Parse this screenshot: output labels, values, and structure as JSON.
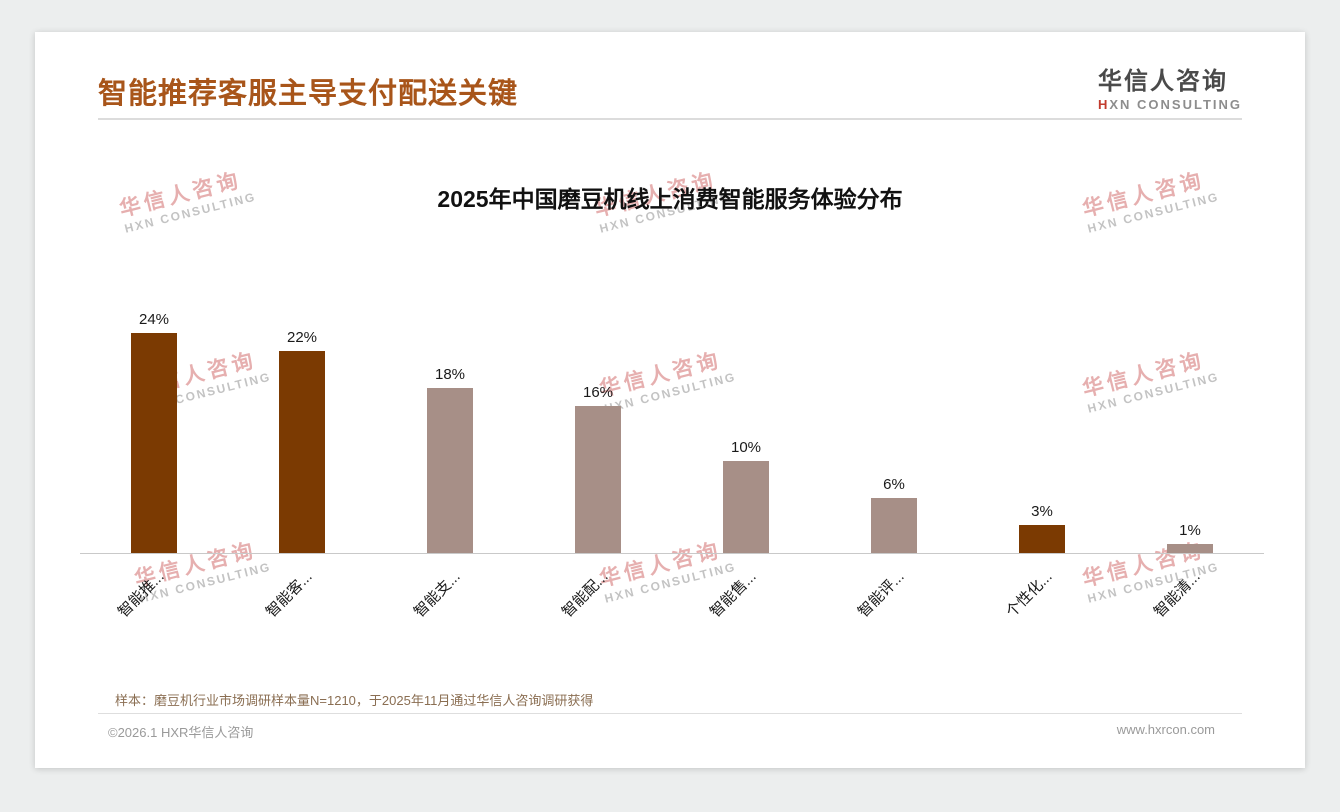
{
  "header": {
    "title": "智能推荐客服主导支付配送关键",
    "logo": {
      "cn": "华信人咨询",
      "en_mark": "H",
      "en_rest": "XN CONSULTING"
    }
  },
  "watermark": {
    "cn": "华信人咨询",
    "en": "HXN CONSULTING"
  },
  "chart_data": {
    "type": "bar",
    "title": "2025年中国磨豆机线上消费智能服务体验分布",
    "categories": [
      "智能推...",
      "智能客...",
      "智能支...",
      "智能配...",
      "智能售...",
      "智能评...",
      "个性化...",
      "智能清..."
    ],
    "values": [
      24,
      22,
      18,
      16,
      10,
      6,
      3,
      1
    ],
    "value_labels": [
      "24%",
      "22%",
      "18%",
      "16%",
      "10%",
      "6%",
      "3%",
      "1%"
    ],
    "bar_colors": [
      "#7b3a02",
      "#7b3a02",
      "#a78f87",
      "#a78f87",
      "#a78f87",
      "#a78f87",
      "#7b3a02",
      "#a78f87"
    ],
    "xlabel": "",
    "ylabel": "",
    "ylim": [
      0,
      26
    ],
    "grid": false,
    "legend": null
  },
  "footnote": "样本：磨豆机行业市场调研样本量N=1210，于2025年11月通过华信人咨询调研获得",
  "footer": {
    "left": "©2026.1 HXR华信人咨询",
    "right": "www.hxrcon.com"
  },
  "colors": {
    "title": "#a8551a",
    "bar_dark": "#7b3a02",
    "bar_light": "#a78f87",
    "logo_mark": "#c23b2e"
  }
}
